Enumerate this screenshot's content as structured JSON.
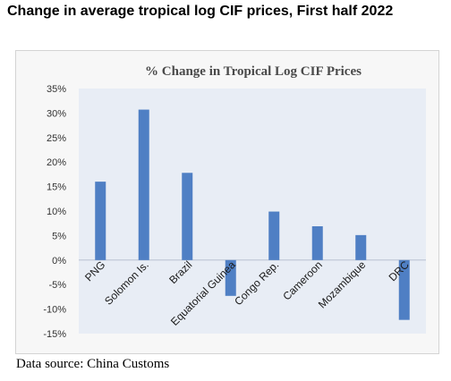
{
  "page": {
    "heading": "Change in average tropical log CIF prices, First half 2022",
    "source": "Data source: China Customs"
  },
  "chart_data": {
    "type": "bar",
    "title": "% Change in Tropical Log CIF Prices",
    "categories": [
      "PNG",
      "Solomon Is.",
      "Brazil",
      "Equatorial Guinea",
      "Congo Rep.",
      "Cameroon",
      "Mozambique",
      "DRC"
    ],
    "values": [
      16,
      30.7,
      17.8,
      -7.3,
      9.9,
      6.9,
      5.1,
      -12.2
    ],
    "yticks": [
      "35%",
      "30%",
      "25%",
      "20%",
      "15%",
      "10%",
      "5%",
      "0%",
      "-5%",
      "-10%",
      "-15%"
    ],
    "ylim": [
      -15,
      35
    ],
    "bar_color": "#4f7fc4",
    "plot_bg": "#e8edf5",
    "grid": false,
    "legend": false
  }
}
